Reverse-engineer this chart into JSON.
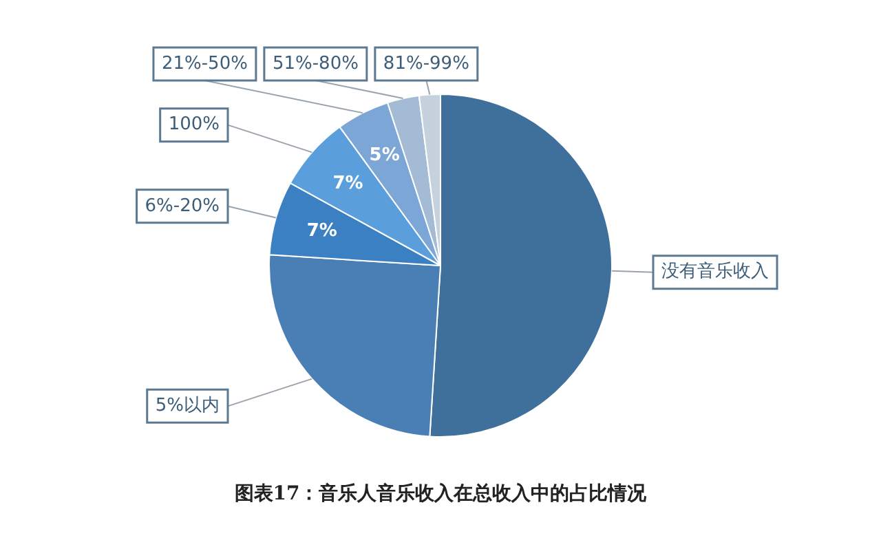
{
  "chart_data": {
    "type": "pie",
    "title": "图表17：音乐人音乐收入在总收入中的占比情况",
    "categories": [
      "没有音乐收入",
      "5%以内",
      "6%-20%",
      "100%",
      "21%-50%",
      "51%-80%",
      "81%-99%"
    ],
    "values": [
      51,
      25,
      7,
      7,
      5,
      3,
      2
    ],
    "value_labels": [
      null,
      null,
      "7%",
      "7%",
      "5%",
      null,
      null
    ],
    "colors": [
      "#3f709c",
      "#4a7fb5",
      "#3a80c2",
      "#5a9fdc",
      "#7ca6d6",
      "#a4bbd6",
      "#c6d1de"
    ],
    "legend": false
  }
}
